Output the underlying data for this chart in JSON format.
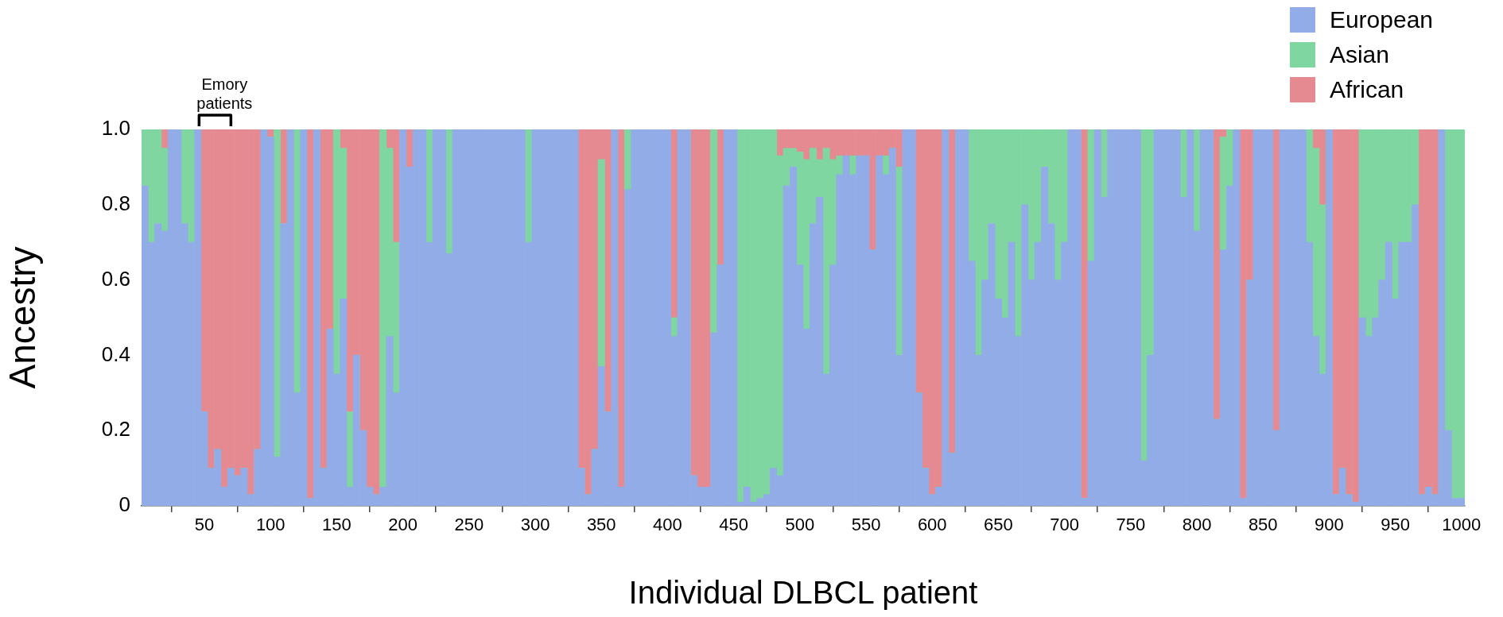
{
  "chart_data": {
    "type": "bar",
    "stacked": true,
    "xlabel": "Individual DLBCL patient",
    "ylabel": "Ancestry",
    "x": [
      5,
      10,
      15,
      20,
      25,
      30,
      35,
      40,
      45,
      50,
      55,
      60,
      65,
      70,
      75,
      80,
      85,
      90,
      95,
      100,
      105,
      110,
      115,
      120,
      125,
      130,
      135,
      140,
      145,
      150,
      155,
      160,
      165,
      170,
      175,
      180,
      185,
      190,
      195,
      200,
      205,
      210,
      215,
      220,
      225,
      230,
      235,
      240,
      245,
      250,
      255,
      260,
      265,
      270,
      275,
      280,
      285,
      290,
      295,
      300,
      305,
      310,
      315,
      320,
      325,
      330,
      335,
      340,
      345,
      350,
      355,
      360,
      365,
      370,
      375,
      380,
      385,
      390,
      395,
      400,
      405,
      410,
      415,
      420,
      425,
      430,
      435,
      440,
      445,
      450,
      455,
      460,
      465,
      470,
      475,
      480,
      485,
      490,
      495,
      500,
      505,
      510,
      515,
      520,
      525,
      530,
      535,
      540,
      545,
      550,
      555,
      560,
      565,
      570,
      575,
      580,
      585,
      590,
      595,
      600,
      605,
      610,
      615,
      620,
      625,
      630,
      635,
      640,
      645,
      650,
      655,
      660,
      665,
      670,
      675,
      680,
      685,
      690,
      695,
      700,
      705,
      710,
      715,
      720,
      725,
      730,
      735,
      740,
      745,
      750,
      755,
      760,
      765,
      770,
      775,
      780,
      785,
      790,
      795,
      800,
      805,
      810,
      815,
      820,
      825,
      830,
      835,
      840,
      845,
      850,
      855,
      860,
      865,
      870,
      875,
      880,
      885,
      890,
      895,
      900,
      905,
      910,
      915,
      920,
      925,
      930,
      935,
      940,
      945,
      950,
      955,
      960,
      965,
      970,
      975,
      980,
      985,
      990,
      995,
      1000
    ],
    "series": [
      {
        "name": "European",
        "color": "#92ace8",
        "values": [
          0.85,
          0.7,
          0.75,
          0.73,
          1,
          1,
          0.75,
          0.7,
          1,
          0.25,
          0.1,
          0.15,
          0.05,
          0.1,
          0.08,
          0.1,
          0.03,
          0.15,
          1,
          0.98,
          0.13,
          0.75,
          1,
          0.3,
          1,
          0.02,
          1,
          0.1,
          0.47,
          0.35,
          0.55,
          0.05,
          0.4,
          0.2,
          0.05,
          0.03,
          0.05,
          0.45,
          0.3,
          1,
          0.9,
          1,
          1,
          0.7,
          1,
          1,
          0.67,
          1,
          1,
          1,
          1,
          1,
          1,
          1,
          1,
          1,
          1,
          1,
          0.7,
          1,
          1,
          1,
          1,
          1,
          1,
          1,
          0.1,
          0.03,
          0.15,
          0.37,
          0.25,
          1,
          0.05,
          0.84,
          1,
          1,
          1,
          1,
          1,
          1,
          0.45,
          1,
          1,
          0.08,
          0.05,
          0.05,
          0.46,
          0.64,
          1,
          1,
          0.01,
          0.05,
          0.01,
          0.02,
          0.03,
          0.1,
          0.08,
          0.85,
          0.9,
          0.64,
          0.47,
          0.75,
          0.82,
          0.35,
          0.64,
          0.88,
          0.93,
          0.88,
          0.93,
          0.93,
          0.68,
          0.93,
          0.88,
          0.95,
          0.4,
          1,
          1,
          0.3,
          0.1,
          0.03,
          0.05,
          1,
          0.14,
          1,
          1,
          0.65,
          0.4,
          0.6,
          0.75,
          0.55,
          0.5,
          0.7,
          0.45,
          0.8,
          0.6,
          0.7,
          0.9,
          0.75,
          0.6,
          0.7,
          1,
          1,
          0.02,
          0.65,
          1,
          0.82,
          1,
          1,
          1,
          1,
          1,
          0.12,
          0.4,
          1,
          1,
          1,
          1,
          0.82,
          1,
          0.73,
          1,
          1,
          0.23,
          0.68,
          0.85,
          1,
          0.02,
          0.6,
          1,
          1,
          1,
          0.2,
          1,
          1,
          1,
          1,
          0.7,
          0.45,
          0.35,
          1,
          0.03,
          0.1,
          0.03,
          0.01,
          0.5,
          0.45,
          0.5,
          0.6,
          0.7,
          0.55,
          0.7,
          0.7,
          0.8,
          0.03,
          0.05,
          0.03,
          1,
          0.2,
          0.02,
          0.02
        ]
      },
      {
        "name": "Asian",
        "color": "#7fd6a0",
        "values": [
          0.15,
          0.3,
          0.25,
          0.22,
          0,
          0,
          0.25,
          0.3,
          0,
          0,
          0,
          0,
          0,
          0,
          0,
          0,
          0,
          0,
          0,
          0,
          0.87,
          0,
          0,
          0.7,
          0,
          0,
          0,
          0,
          0,
          0.65,
          0.4,
          0.2,
          0,
          0,
          0,
          0,
          0.95,
          0.5,
          0.4,
          0,
          0,
          0,
          0,
          0.3,
          0,
          0,
          0.33,
          0,
          0,
          0,
          0,
          0,
          0,
          0,
          0,
          0,
          0,
          0,
          0.3,
          0,
          0,
          0,
          0,
          0,
          0,
          0,
          0,
          0,
          0,
          0.55,
          0,
          0,
          0,
          0.16,
          0,
          0,
          0,
          0,
          0,
          0,
          0.05,
          0,
          0,
          0,
          0,
          0,
          0.54,
          0,
          0,
          0,
          0.99,
          0.95,
          0.99,
          0.98,
          0.97,
          0.9,
          0.85,
          0.1,
          0.05,
          0.3,
          0.45,
          0.2,
          0.1,
          0.6,
          0.28,
          0.05,
          0,
          0.05,
          0,
          0,
          0,
          0,
          0.05,
          0,
          0.5,
          0,
          0,
          0,
          0,
          0,
          0,
          0,
          0,
          0,
          0,
          0.35,
          0.6,
          0.4,
          0.25,
          0.45,
          0.5,
          0.3,
          0.55,
          0.2,
          0.4,
          0.3,
          0.1,
          0.25,
          0.4,
          0.3,
          0,
          0,
          0,
          0.35,
          0,
          0.18,
          0,
          0,
          0,
          0,
          0,
          0.88,
          0.6,
          0,
          0,
          0,
          0,
          0.18,
          0,
          0.27,
          0,
          0,
          0,
          0.3,
          0.15,
          0,
          0,
          0,
          0,
          0,
          0,
          0,
          0,
          0,
          0,
          0,
          0.3,
          0.5,
          0.45,
          0,
          0,
          0,
          0,
          0,
          0.5,
          0.55,
          0.5,
          0.4,
          0.3,
          0.45,
          0.3,
          0.3,
          0.2,
          0,
          0,
          0,
          0,
          0.8,
          0.98,
          0.98
        ]
      },
      {
        "name": "African",
        "color": "#e68a92",
        "values": [
          0,
          0,
          0,
          0.05,
          0,
          0,
          0,
          0,
          0,
          0.75,
          0.9,
          0.85,
          0.95,
          0.9,
          0.92,
          0.9,
          0.97,
          0.85,
          0,
          0.02,
          0,
          0.25,
          0,
          0,
          0,
          0.98,
          0,
          0.9,
          0.53,
          0,
          0.05,
          0.75,
          0.6,
          0.8,
          0.95,
          0.97,
          0,
          0.05,
          0.3,
          0,
          0.1,
          0,
          0,
          0,
          0,
          0,
          0,
          0,
          0,
          0,
          0,
          0,
          0,
          0,
          0,
          0,
          0,
          0,
          0,
          0,
          0,
          0,
          0,
          0,
          0,
          0,
          0.9,
          0.97,
          0.85,
          0.08,
          0.75,
          0,
          0.95,
          0,
          0,
          0,
          0,
          0,
          0,
          0,
          0.5,
          0,
          0,
          0.92,
          0.95,
          0.95,
          0,
          0.36,
          0,
          0,
          0,
          0,
          0,
          0,
          0,
          0,
          0.07,
          0.05,
          0.05,
          0.06,
          0.08,
          0.05,
          0.08,
          0.05,
          0.08,
          0.07,
          0.07,
          0.07,
          0.07,
          0.07,
          0.32,
          0.07,
          0.07,
          0.05,
          0.1,
          0,
          0,
          0.7,
          0.9,
          0.97,
          0.95,
          0,
          0.86,
          0,
          0,
          0,
          0,
          0,
          0,
          0,
          0,
          0,
          0,
          0,
          0,
          0,
          0,
          0,
          0,
          0,
          0,
          0,
          0.98,
          0,
          0,
          0,
          0,
          0,
          0,
          0,
          0,
          0,
          0,
          0,
          0,
          0,
          0,
          0,
          0,
          0,
          0,
          0,
          0.77,
          0.02,
          0,
          0,
          0.98,
          0.4,
          0,
          0,
          0,
          0.8,
          0,
          0,
          0,
          0,
          0,
          0.05,
          0.2,
          0,
          0.97,
          0.9,
          0.97,
          0.99,
          0,
          0,
          0,
          0,
          0,
          0,
          0,
          0,
          0,
          0.97,
          0.95,
          0.97,
          0,
          0,
          0,
          0
        ]
      }
    ],
    "xlim": [
      2.5,
      1002.5
    ],
    "xticks": [
      50,
      100,
      150,
      200,
      250,
      300,
      350,
      400,
      450,
      500,
      550,
      600,
      650,
      700,
      750,
      800,
      850,
      900,
      950,
      1000
    ],
    "ylim": [
      0,
      1
    ],
    "yticks": [
      0,
      {
        "value": 0.2,
        "label": "0.2"
      },
      {
        "value": 0.4,
        "label": "0.4"
      },
      {
        "value": 0.6,
        "label": "0.6"
      },
      {
        "value": 0.8,
        "label": "0.8"
      },
      {
        "value": 1,
        "label": "1.0"
      }
    ],
    "legend": "top right",
    "grid": false,
    "annotations": [
      {
        "text": "Emory patients",
        "x": 58,
        "y": 1
      }
    ]
  }
}
